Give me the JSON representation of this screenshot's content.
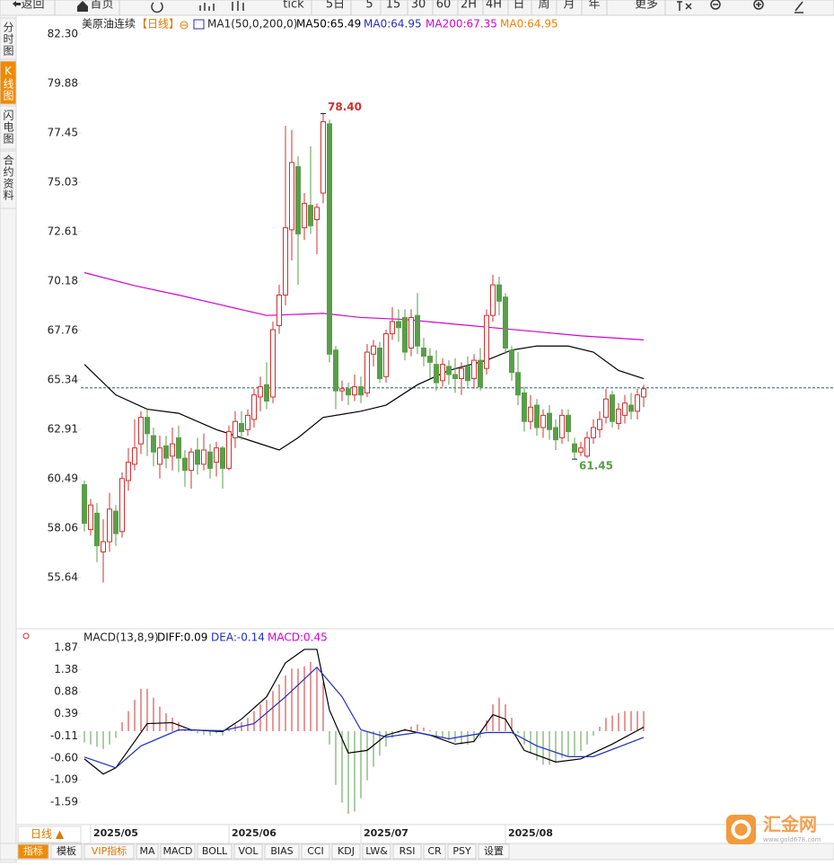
{
  "toolbar": [
    "返回",
    "首页",
    "tick",
    "5日",
    "5",
    "15",
    "30",
    "60",
    "2H",
    "4H",
    "日",
    "周",
    "月",
    "年",
    "更多"
  ],
  "side_tabs": [
    "分时图",
    "K线图",
    "闪电图",
    "合约资料"
  ],
  "period_label": "日线 ▲",
  "bottom_tabs": [
    "指标",
    "模板",
    "VIP指标",
    "MA",
    "MACD",
    "BOLL",
    "VOL",
    "BIAS",
    "CCI",
    "KDJ",
    "LW&",
    "RSI",
    "CR",
    "PSY",
    "设置"
  ],
  "watermark": "汇金网",
  "watermark_url": "www.gold678.com",
  "chart_data": [
    {
      "type": "candlestick",
      "title": "美原油连续",
      "period": "【日线】",
      "indicator": "MA1(50,0,200,0)",
      "up_color": "#d03030",
      "down_color": "#5a9e4a",
      "categories": [
        null,
        "2025/05",
        null,
        null,
        null,
        null,
        null,
        null,
        null,
        null,
        null,
        null,
        null,
        null,
        null,
        null,
        null,
        null,
        null,
        null,
        null,
        null,
        null,
        "2025/06",
        null,
        null,
        null,
        null,
        null,
        null,
        null,
        null,
        null,
        null,
        null,
        null,
        null,
        null,
        null,
        null,
        null,
        null,
        null,
        null,
        "2025/07",
        null,
        null,
        null,
        null,
        null,
        null,
        null,
        null,
        null,
        null,
        null,
        null,
        null,
        null,
        null,
        null,
        null,
        null,
        null,
        null,
        null,
        null,
        "2025/08",
        null,
        null,
        null,
        null,
        null,
        null,
        null,
        null,
        null,
        null,
        null,
        null,
        null,
        null,
        null,
        null,
        null,
        null,
        null,
        null,
        null,
        null
      ],
      "ohlc": [
        [
          60.2,
          60.4,
          57.9,
          58.3
        ],
        [
          58.0,
          59.5,
          57.7,
          59.2
        ],
        [
          58.8,
          59.3,
          56.4,
          57.2
        ],
        [
          56.9,
          58.5,
          55.4,
          57.4
        ],
        [
          57.4,
          59.8,
          56.9,
          59.0
        ],
        [
          58.9,
          59.2,
          57.2,
          57.8
        ],
        [
          57.9,
          60.8,
          57.6,
          60.5
        ],
        [
          60.4,
          62.0,
          59.9,
          61.3
        ],
        [
          61.2,
          63.4,
          60.9,
          62.0
        ],
        [
          62.2,
          63.8,
          61.7,
          63.5
        ],
        [
          63.5,
          63.9,
          61.6,
          62.7
        ],
        [
          62.6,
          63.0,
          61.1,
          61.8
        ],
        [
          61.2,
          62.6,
          60.5,
          62.0
        ],
        [
          62.1,
          62.6,
          61.0,
          61.5
        ],
        [
          61.6,
          63.0,
          60.9,
          62.2
        ],
        [
          62.5,
          63.1,
          60.8,
          61.5
        ],
        [
          61.5,
          61.9,
          60.1,
          60.9
        ],
        [
          60.9,
          62.0,
          60.0,
          61.8
        ],
        [
          61.9,
          62.5,
          60.7,
          61.2
        ],
        [
          61.2,
          62.7,
          60.9,
          61.9
        ],
        [
          61.8,
          62.2,
          60.5,
          61.0
        ],
        [
          61.3,
          62.3,
          60.6,
          62.0
        ],
        [
          62.0,
          62.1,
          60.0,
          61.0
        ],
        [
          61.0,
          63.1,
          60.9,
          62.8
        ],
        [
          62.5,
          63.8,
          62.0,
          63.3
        ],
        [
          63.2,
          63.8,
          62.4,
          62.8
        ],
        [
          62.9,
          63.9,
          62.6,
          63.6
        ],
        [
          63.4,
          64.9,
          63.0,
          64.6
        ],
        [
          64.5,
          65.5,
          63.8,
          65.0
        ],
        [
          65.1,
          66.2,
          63.9,
          64.3
        ],
        [
          64.5,
          68.2,
          64.2,
          67.8
        ],
        [
          68.0,
          70.0,
          67.6,
          69.5
        ],
        [
          69.5,
          77.8,
          69.0,
          72.8
        ],
        [
          72.7,
          77.6,
          71.2,
          76.0
        ],
        [
          75.8,
          76.3,
          70.0,
          72.5
        ],
        [
          72.8,
          74.5,
          72.2,
          74.0
        ],
        [
          73.9,
          76.8,
          72.5,
          72.9
        ],
        [
          73.2,
          74.0,
          71.5,
          73.8
        ],
        [
          74.5,
          78.4,
          74.0,
          78.0
        ],
        [
          77.9,
          78.1,
          66.2,
          66.6
        ],
        [
          66.8,
          67.0,
          63.9,
          64.8
        ],
        [
          64.8,
          65.3,
          64.3,
          64.9
        ],
        [
          64.9,
          65.2,
          64.1,
          64.6
        ],
        [
          64.6,
          65.6,
          64.3,
          65.0
        ],
        [
          65.0,
          65.5,
          64.2,
          64.6
        ],
        [
          64.7,
          67.1,
          64.5,
          66.7
        ],
        [
          66.6,
          67.3,
          66.0,
          67.0
        ],
        [
          66.9,
          67.2,
          65.2,
          65.4
        ],
        [
          65.5,
          67.8,
          65.2,
          67.6
        ],
        [
          67.6,
          68.9,
          67.3,
          68.2
        ],
        [
          68.2,
          68.8,
          67.2,
          67.9
        ],
        [
          68.4,
          68.8,
          66.3,
          66.7
        ],
        [
          66.9,
          68.8,
          66.5,
          68.4
        ],
        [
          68.5,
          69.6,
          66.6,
          67.0
        ],
        [
          66.9,
          67.4,
          66.0,
          66.5
        ],
        [
          66.5,
          66.9,
          65.4,
          66.2
        ],
        [
          66.1,
          66.8,
          64.8,
          65.2
        ],
        [
          65.3,
          66.4,
          65.0,
          66.1
        ],
        [
          66.0,
          66.3,
          65.1,
          65.6
        ],
        [
          65.6,
          66.4,
          64.7,
          65.4
        ],
        [
          65.4,
          66.2,
          64.6,
          65.9
        ],
        [
          66.0,
          66.5,
          65.0,
          65.3
        ],
        [
          65.4,
          66.6,
          64.9,
          66.3
        ],
        [
          66.3,
          66.9,
          64.8,
          65.0
        ],
        [
          65.9,
          68.8,
          65.6,
          68.5
        ],
        [
          68.5,
          70.5,
          68.2,
          70.0
        ],
        [
          70.0,
          70.4,
          68.5,
          69.2
        ],
        [
          69.4,
          69.6,
          66.6,
          66.9
        ],
        [
          66.8,
          67.0,
          65.3,
          65.7
        ],
        [
          65.7,
          66.7,
          64.1,
          64.6
        ],
        [
          64.7,
          65.0,
          62.8,
          63.3
        ],
        [
          63.3,
          64.6,
          62.9,
          64.0
        ],
        [
          64.1,
          64.4,
          62.6,
          63.0
        ],
        [
          63.0,
          63.9,
          62.5,
          63.6
        ],
        [
          63.7,
          64.1,
          62.4,
          62.9
        ],
        [
          63.0,
          63.4,
          61.9,
          62.4
        ],
        [
          62.5,
          63.9,
          62.2,
          63.6
        ],
        [
          63.6,
          63.9,
          62.3,
          62.8
        ],
        [
          62.2,
          62.5,
          61.45,
          61.8
        ],
        [
          61.8,
          62.3,
          61.6,
          62.0
        ],
        [
          61.6,
          62.8,
          61.5,
          62.5
        ],
        [
          62.5,
          63.4,
          62.2,
          63.0
        ],
        [
          62.9,
          63.8,
          62.5,
          63.4
        ],
        [
          63.5,
          64.9,
          63.2,
          64.4
        ],
        [
          64.6,
          64.8,
          63.0,
          63.3
        ],
        [
          63.2,
          64.2,
          62.9,
          63.9
        ],
        [
          63.6,
          64.6,
          63.2,
          64.2
        ],
        [
          64.1,
          64.7,
          63.4,
          63.8
        ],
        [
          63.8,
          64.9,
          63.4,
          64.6
        ],
        [
          64.5,
          65.1,
          64.0,
          64.9
        ]
      ],
      "series": [
        {
          "name": "MA50:65.49",
          "color": "#000000",
          "x": [
            0,
            5,
            10,
            15,
            21,
            27,
            31,
            34,
            38,
            44,
            48,
            53,
            58,
            64,
            68,
            72,
            77,
            81,
            85,
            89
          ],
          "values": [
            66.1,
            64.6,
            63.9,
            63.7,
            62.9,
            62.3,
            61.9,
            62.5,
            63.5,
            63.8,
            64.1,
            65.1,
            65.8,
            66.3,
            66.8,
            67.0,
            67.0,
            66.7,
            65.8,
            65.4
          ]
        },
        {
          "name": "MA200:67.35",
          "color": "#d400d4",
          "x": [
            0,
            8,
            15,
            22,
            29,
            38,
            44,
            51,
            58,
            65,
            72,
            79,
            89
          ],
          "values": [
            70.6,
            69.96,
            69.5,
            69.0,
            68.5,
            68.6,
            68.4,
            68.3,
            68.1,
            67.9,
            67.7,
            67.5,
            67.3
          ]
        }
      ],
      "ref_lines": [
        {
          "value": 64.95,
          "label": "MA0:64.95",
          "color": "#f08000"
        },
        {
          "value": 64.95,
          "label": "MA0:64.95",
          "color": "#2f7fa8"
        }
      ],
      "annotations": [
        {
          "x": 38,
          "value": 78.4,
          "label": "78.40",
          "color": "#d03030"
        },
        {
          "x": 78,
          "value": 61.45,
          "label": "61.45",
          "color": "#5a9e4a"
        }
      ],
      "ylim": [
        53.35,
        82.74
      ],
      "yticks": [
        {
          "value": 82.3,
          "label": "82.30"
        },
        79.88,
        77.45,
        75.03,
        72.61,
        70.18,
        67.76,
        65.34,
        62.91,
        60.49,
        58.06,
        55.64
      ]
    },
    {
      "type": "macd",
      "title": "MACD(13,8,9)",
      "histogram": {
        "name": "MACD:0.45",
        "up_color": "#d03030",
        "down_color": "#5a9e4a",
        "values": [
          -0.25,
          -0.3,
          -0.35,
          -0.4,
          -0.3,
          -0.15,
          0.2,
          0.45,
          0.7,
          0.95,
          0.95,
          0.75,
          0.55,
          0.4,
          0.3,
          0.2,
          0.05,
          0.03,
          -0.05,
          -0.08,
          -0.1,
          -0.05,
          -0.1,
          0.05,
          0.15,
          0.2,
          0.3,
          0.45,
          0.6,
          0.7,
          0.9,
          1.05,
          1.25,
          1.4,
          1.4,
          1.45,
          1.55,
          1.4,
          1.1,
          -0.3,
          -1.2,
          -1.6,
          -1.85,
          -1.8,
          -1.5,
          -1.1,
          -0.8,
          -0.55,
          -0.35,
          -0.15,
          -0.05,
          0.05,
          0.1,
          0.15,
          0.08,
          0.02,
          -0.1,
          -0.15,
          -0.2,
          -0.25,
          -0.3,
          -0.3,
          -0.25,
          -0.15,
          0.25,
          0.6,
          0.75,
          0.6,
          0.3,
          -0.05,
          -0.3,
          -0.5,
          -0.65,
          -0.75,
          -0.75,
          -0.7,
          -0.6,
          -0.55,
          -0.55,
          -0.45,
          -0.3,
          -0.1,
          0.1,
          0.3,
          0.35,
          0.4,
          0.45,
          0.45,
          0.45,
          0.45
        ]
      },
      "series": [
        {
          "name": "DIFF:0.09",
          "color": "#000000",
          "x": [
            0,
            3,
            5,
            8,
            10,
            14,
            17,
            22,
            25,
            29,
            32,
            35,
            37,
            39,
            42,
            45,
            48,
            51,
            55,
            59,
            62,
            65,
            67,
            70,
            75,
            79,
            84,
            89
          ],
          "values": [
            -0.62,
            -0.96,
            -0.82,
            -0.23,
            0.17,
            0.19,
            0.03,
            -0.01,
            0.27,
            0.77,
            1.53,
            1.83,
            1.83,
            0.47,
            -0.49,
            -0.43,
            -0.09,
            0.03,
            -0.09,
            -0.29,
            -0.23,
            0.37,
            0.27,
            -0.43,
            -0.69,
            -0.62,
            -0.29,
            0.09
          ]
        },
        {
          "name": "DEA:-0.14",
          "color": "#1f2fbf",
          "x": [
            0,
            5,
            9,
            15,
            22,
            27,
            32,
            37,
            41,
            44,
            48,
            53,
            58,
            64,
            68,
            72,
            77,
            81,
            89
          ],
          "values": [
            -0.58,
            -0.82,
            -0.33,
            0.03,
            0.01,
            0.17,
            0.77,
            1.43,
            0.77,
            0.03,
            -0.13,
            -0.03,
            -0.17,
            -0.03,
            -0.03,
            -0.33,
            -0.57,
            -0.57,
            -0.14
          ]
        }
      ],
      "ylim": [
        -2.03,
        1.99
      ],
      "yticks": [
        1.87,
        1.38,
        0.88,
        0.39,
        -0.11,
        {
          "value": -0.6,
          "label": "-0.60"
        },
        -1.09,
        -1.59
      ]
    }
  ]
}
